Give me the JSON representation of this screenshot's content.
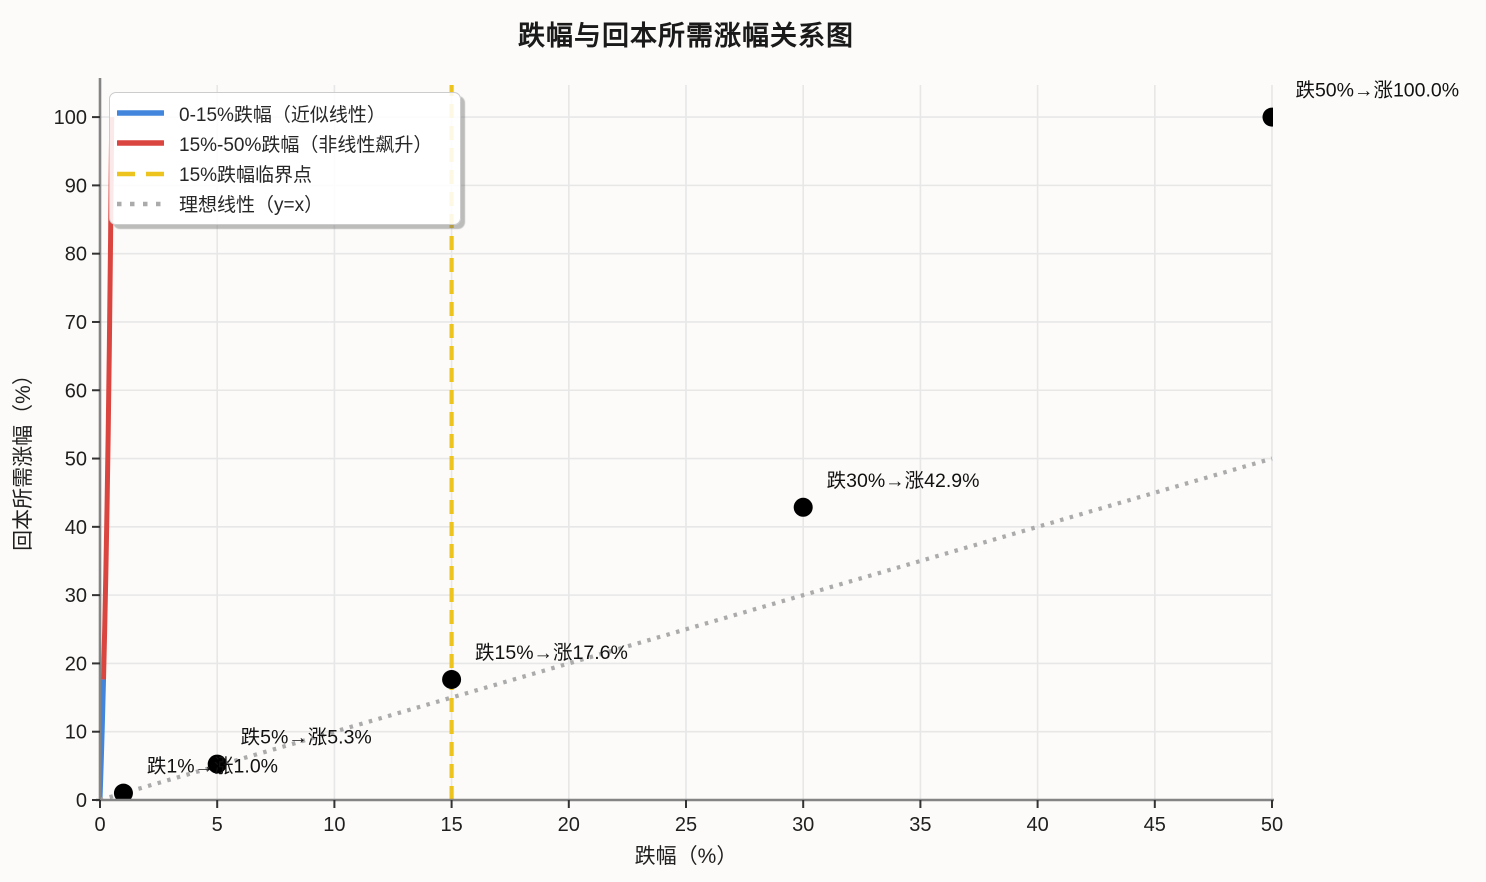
{
  "chart_data": {
    "type": "line",
    "title": "跌幅与回本所需涨幅关系图",
    "xlabel": "跌幅（%）",
    "ylabel": "回本所需涨幅（%）",
    "xlim": [
      0,
      50
    ],
    "ylim": [
      0,
      104.7
    ],
    "xticks": [
      0,
      5,
      10,
      15,
      20,
      25,
      30,
      35,
      40,
      45,
      50
    ],
    "yticks": [
      0,
      10,
      20,
      30,
      40,
      50,
      60,
      70,
      80,
      90,
      100
    ],
    "grid": true,
    "legend_position": "upper left",
    "colors": {
      "blue": "#4285DC",
      "red": "#DB4540",
      "yellow": "#EDC31E",
      "gray": "#ABABAB",
      "grid": "#e7e7e7",
      "spine": "#848484",
      "tick": "#333333",
      "text": "#1f1f1f",
      "scatter": "#000000"
    },
    "series": [
      {
        "name": "0-15%跌幅（近似线性）",
        "color_key": "blue",
        "style": "solid",
        "note": "curve y=x/(1-x) plotted with x as fraction 0–0.15 on the 0–50 axis, hugging the y-axis",
        "points": [
          [
            0,
            0
          ],
          [
            0.05,
            5.26
          ],
          [
            0.1,
            11.11
          ],
          [
            0.15,
            17.65
          ]
        ]
      },
      {
        "name": "15%-50%跌幅（非线性飙升）",
        "color_key": "red",
        "style": "solid",
        "note": "curve y=x/(1-x) plotted with x as fraction 0.15–0.5 on the 0–50 axis",
        "points": [
          [
            0.15,
            17.65
          ],
          [
            0.2,
            25.0
          ],
          [
            0.25,
            33.33
          ],
          [
            0.3,
            42.86
          ],
          [
            0.35,
            53.85
          ],
          [
            0.4,
            66.67
          ],
          [
            0.45,
            81.82
          ],
          [
            0.5,
            100.0
          ]
        ]
      },
      {
        "name": "15%跌幅临界点",
        "color_key": "yellow",
        "style": "dashed",
        "points": [
          [
            15,
            0
          ],
          [
            15,
            104.7
          ]
        ]
      },
      {
        "name": "理想线性（y=x）",
        "color_key": "gray",
        "style": "dotted",
        "points": [
          [
            0,
            0
          ],
          [
            50,
            50
          ]
        ]
      }
    ],
    "scatter": {
      "color_key": "scatter",
      "points": [
        [
          1,
          1.01
        ],
        [
          5,
          5.26
        ],
        [
          15,
          17.65
        ],
        [
          30,
          42.86
        ],
        [
          50,
          100.0
        ]
      ]
    },
    "annotations": [
      {
        "label": "跌1%→涨1.0%",
        "x": 1,
        "y": 1.01
      },
      {
        "label": "跌5%→涨5.3%",
        "x": 5,
        "y": 5.26
      },
      {
        "label": "跌15%→涨17.6%",
        "x": 15,
        "y": 17.65
      },
      {
        "label": "跌30%→涨42.9%",
        "x": 30,
        "y": 42.86
      },
      {
        "label": "跌50%→涨100.0%",
        "x": 50,
        "y": 100.0
      }
    ],
    "annotation_offset": [
      1,
      3
    ],
    "legend": [
      {
        "label": "0-15%跌幅（近似线性）",
        "color_key": "blue",
        "style": "solid"
      },
      {
        "label": "15%-50%跌幅（非线性飙升）",
        "color_key": "red",
        "style": "solid"
      },
      {
        "label": "15%跌幅临界点",
        "color_key": "yellow",
        "style": "dashed"
      },
      {
        "label": "理想线性（y=x）",
        "color_key": "gray",
        "style": "dotted"
      }
    ]
  }
}
